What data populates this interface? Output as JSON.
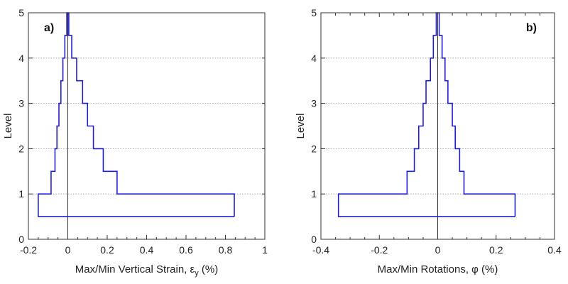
{
  "chart_data": [
    {
      "type": "line",
      "panel_label": "a)",
      "xlabel_main": "Max/Min Vertical Strain, ",
      "xlabel_symbol": "ε",
      "xlabel_sub": "y",
      "xlabel_unit": " (%)",
      "ylabel": "Level",
      "xlim": [
        -0.2,
        1.0
      ],
      "ylim": [
        0,
        5
      ],
      "x_ticks": [
        -0.2,
        0,
        0.2,
        0.4,
        0.6,
        0.8,
        1
      ],
      "x_tick_labels": [
        "-0.2",
        "0",
        "0.2",
        "0.4",
        "0.6",
        "0.8",
        "1"
      ],
      "y_ticks": [
        0,
        1,
        2,
        3,
        4,
        5
      ],
      "y_tick_labels": [
        "0",
        "1",
        "2",
        "3",
        "4",
        "5"
      ],
      "grid": "horizontal dotted",
      "series_color": "#1f1fd0",
      "step_profile": {
        "levels": [
          0.5,
          1.0,
          1.5,
          2.0,
          2.5,
          3.0,
          3.5,
          4.0,
          4.5,
          5.0
        ],
        "max": [
          0.845,
          0.25,
          0.18,
          0.13,
          0.1,
          0.075,
          0.045,
          0.02,
          0.005,
          0.0
        ],
        "min": [
          -0.15,
          -0.085,
          -0.065,
          -0.055,
          -0.045,
          -0.035,
          -0.025,
          -0.015,
          -0.005,
          0.0
        ]
      }
    },
    {
      "type": "line",
      "panel_label": "b)",
      "xlabel_main": "Max/Min Rotations, ",
      "xlabel_symbol": "φ",
      "xlabel_sub": "",
      "xlabel_unit": " (%)",
      "ylabel": "Level",
      "xlim": [
        -0.4,
        0.4
      ],
      "ylim": [
        0,
        5
      ],
      "x_ticks": [
        -0.4,
        -0.2,
        0,
        0.2,
        0.4
      ],
      "x_tick_labels": [
        "-0.4",
        "-0.2",
        "0",
        "0.2",
        "0.4"
      ],
      "y_ticks": [
        0,
        1,
        2,
        3,
        4,
        5
      ],
      "y_tick_labels": [
        "0",
        "1",
        "2",
        "3",
        "4",
        "5"
      ],
      "grid": "horizontal dotted",
      "series_color": "#1f1fd0",
      "step_profile": {
        "levels": [
          0.5,
          1.0,
          1.5,
          2.0,
          2.5,
          3.0,
          3.5,
          4.0,
          4.5,
          5.0
        ],
        "max": [
          0.265,
          0.09,
          0.075,
          0.06,
          0.05,
          0.035,
          0.025,
          0.015,
          0.005,
          0.0
        ],
        "min": [
          -0.34,
          -0.105,
          -0.08,
          -0.065,
          -0.05,
          -0.04,
          -0.025,
          -0.015,
          -0.005,
          0.0
        ]
      }
    }
  ]
}
